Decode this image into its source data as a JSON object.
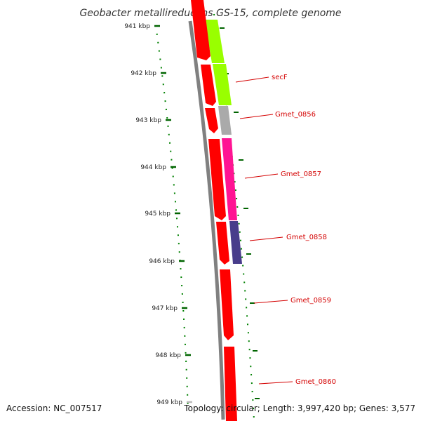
{
  "title": "Geobacter metallireducens GS-15, complete genome",
  "footer": {
    "accession": "Accession: NC_007517",
    "summary": "Topology: circular; Length: 3,997,420 bp; Genes: 3,577"
  },
  "ruler": {
    "unit": "kbp",
    "ticks": [
      "941 kbp",
      "942 kbp",
      "943 kbp",
      "944 kbp",
      "945 kbp",
      "946 kbp",
      "947 kbp",
      "948 kbp",
      "949 kbp"
    ]
  },
  "colors": {
    "title": "#333333",
    "backbone": "#808080",
    "ruler_dots": "#008000",
    "gene_label": "#d40000",
    "forward_gene": "#ff0000",
    "secF": "#99ff00",
    "Gmet_0856": "#aaaaaa",
    "Gmet_0857": "#ff1493",
    "Gmet_0858": "#483d8b"
  },
  "forward_strand": {
    "gene_count": 6,
    "color_name": "red"
  },
  "cog_track": [
    {
      "gene": "secF",
      "color": "#99ff00"
    },
    {
      "gene": "Gmet_0856",
      "color": "#aaaaaa"
    },
    {
      "gene": "Gmet_0857",
      "color": "#ff1493"
    },
    {
      "gene": "Gmet_0858",
      "color": "#483d8b"
    }
  ],
  "gene_labels": [
    "secF",
    "Gmet_0856",
    "Gmet_0857",
    "Gmet_0858",
    "Gmet_0859",
    "Gmet_0860"
  ]
}
